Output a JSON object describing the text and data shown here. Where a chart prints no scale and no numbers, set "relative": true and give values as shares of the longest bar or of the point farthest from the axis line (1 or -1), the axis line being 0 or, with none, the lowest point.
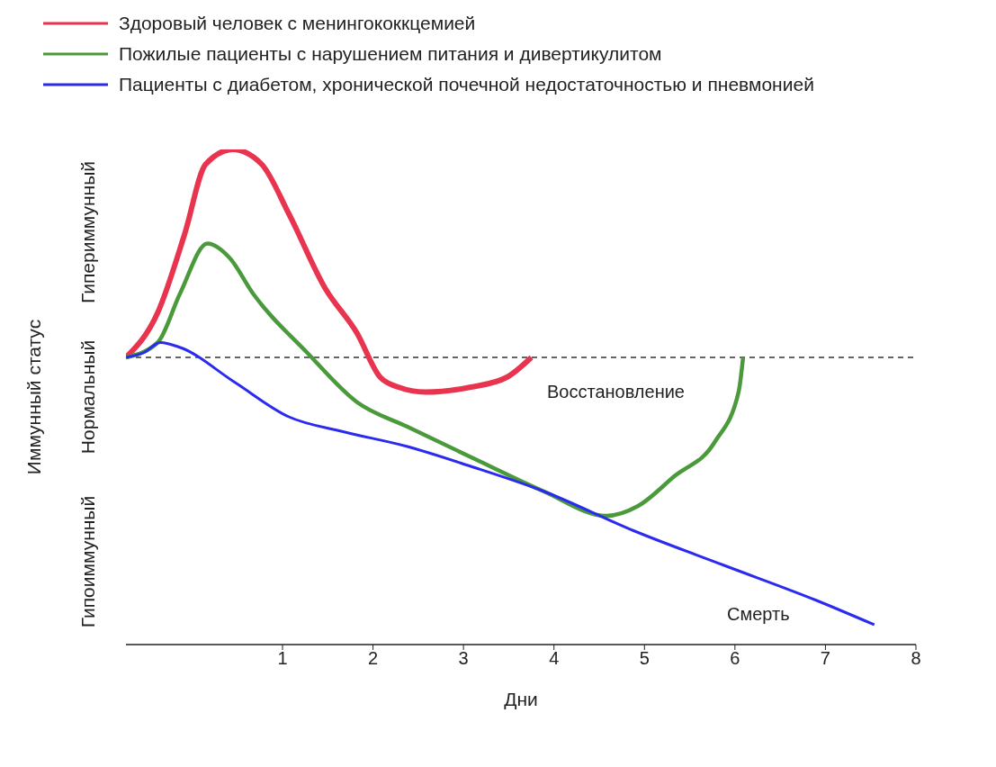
{
  "chart_data": {
    "type": "line",
    "relative": true,
    "xlabel": "Дни",
    "ylabel": "Иммунный статус",
    "legend": "top left",
    "line_style": "solid",
    "marker": "none",
    "xlim": [
      -0.73,
      8
    ],
    "xticks": [
      1,
      2,
      3,
      4,
      5,
      6,
      7,
      8
    ],
    "series": [
      {
        "name": "Здоровый человек с менингококкцемией",
        "color": "#e8344e",
        "x": [
          -0.73,
          -0.38,
          -0.08,
          0.15,
          0.45,
          0.77,
          1.07,
          1.47,
          1.82,
          2.08,
          2.28,
          2.58,
          3.08,
          3.48,
          3.75
        ],
        "values": [
          0.58,
          0.67,
          0.83,
          0.97,
          1.0,
          0.97,
          0.87,
          0.72,
          0.63,
          0.54,
          0.52,
          0.51,
          0.52,
          0.54,
          0.58
        ]
      },
      {
        "name": "Пожилые пациенты с нарушением питания и дивертикулитом",
        "color": "#4a9a3c",
        "x": [
          -0.73,
          -0.38,
          -0.13,
          0.17,
          0.42,
          0.67,
          1.27,
          1.82,
          2.38,
          3.18,
          3.88,
          4.58,
          4.93,
          5.33,
          5.78,
          6.04,
          6.09
        ],
        "values": [
          0.58,
          0.61,
          0.71,
          0.81,
          0.78,
          0.71,
          0.59,
          0.49,
          0.44,
          0.37,
          0.31,
          0.26,
          0.28,
          0.34,
          0.41,
          0.51,
          0.58
        ]
      },
      {
        "name": "Пациенты с диабетом, хронической почечной недостаточностью и пневмонией",
        "color": "#2b2bf0",
        "x": [
          -0.73,
          -0.53,
          -0.35,
          -0.13,
          0.47,
          1.07,
          1.67,
          2.38,
          3.08,
          3.88,
          4.88,
          5.88,
          6.89,
          7.54
        ],
        "values": [
          0.58,
          0.59,
          0.61,
          0.6,
          0.53,
          0.46,
          0.43,
          0.4,
          0.36,
          0.31,
          0.23,
          0.16,
          0.09,
          0.04
        ]
      }
    ],
    "ref_lines": [
      {
        "axis": "y",
        "value": 0.58,
        "color": "#333333",
        "line_style": "dashed"
      }
    ],
    "annotations": [
      "Гипоиммунный",
      "Нормальный",
      "Гипериммунный",
      "Восстановление",
      "Смерть"
    ]
  }
}
